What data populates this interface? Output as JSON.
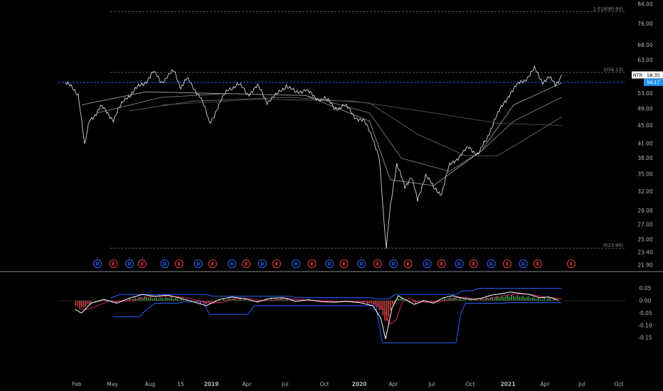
{
  "colors": {
    "background": "#000000",
    "price": "#d1d4dc",
    "axis_text": "#b2b5be",
    "fib_line": "#787b86",
    "dashed_blue": "#2962ff",
    "last_price_bg": "#2196f3",
    "dividend": "#2962ff",
    "earnings": "#f23645",
    "osc_white": "#ffffff",
    "osc_green": "#4caf50",
    "osc_red": "#ef5350",
    "osc_channel": "#2962ff",
    "osc_signal": "#e91e63"
  },
  "chart_data": [
    {
      "type": "line",
      "symbol": "NTR",
      "last_price_tag": "58.35",
      "level_tag": "56.17",
      "level_value": 56.17,
      "price_axis_ticks": [
        "84.00",
        "76.00",
        "68.00",
        "63.00",
        "58.00",
        "53.00",
        "49.00",
        "45.00",
        "41.00",
        "38.00",
        "35.00",
        "32.00",
        "29.00",
        "27.00",
        "25.00",
        "23.40",
        "21.90"
      ],
      "time_axis_labels": [
        "Feb",
        "May",
        "Aug",
        "15",
        "2019",
        "Apr",
        "Jul",
        "Oct",
        "2020",
        "Apr",
        "Jul",
        "Oct",
        "2021",
        "Apr",
        "Jul",
        "Oct"
      ],
      "fib_levels": [
        {
          "label": "1.618(80.90)",
          "value": 80.9
        },
        {
          "label": "1(59.13)",
          "value": 59.13
        },
        {
          "label": "0(23.90)",
          "value": 23.9
        }
      ],
      "key_prices": [
        {
          "x": 0.0,
          "y": 56.0
        },
        {
          "x": 0.8,
          "y": 53.0
        },
        {
          "x": 1.2,
          "y": 40.3
        },
        {
          "x": 1.5,
          "y": 46.0
        },
        {
          "x": 2.2,
          "y": 49.5
        },
        {
          "x": 3.0,
          "y": 46.5
        },
        {
          "x": 3.8,
          "y": 52.0
        },
        {
          "x": 4.5,
          "y": 54.5
        },
        {
          "x": 5.0,
          "y": 56.5
        },
        {
          "x": 5.5,
          "y": 59.0
        },
        {
          "x": 6.0,
          "y": 56.5
        },
        {
          "x": 6.8,
          "y": 59.4
        },
        {
          "x": 7.2,
          "y": 55.0
        },
        {
          "x": 7.6,
          "y": 57.0
        },
        {
          "x": 8.4,
          "y": 52.5
        },
        {
          "x": 9.0,
          "y": 45.5
        },
        {
          "x": 9.6,
          "y": 50.0
        },
        {
          "x": 10.2,
          "y": 54.5
        },
        {
          "x": 10.8,
          "y": 55.5
        },
        {
          "x": 11.4,
          "y": 53.0
        },
        {
          "x": 12.0,
          "y": 55.0
        },
        {
          "x": 12.6,
          "y": 51.0
        },
        {
          "x": 13.2,
          "y": 52.5
        },
        {
          "x": 13.8,
          "y": 55.5
        },
        {
          "x": 14.4,
          "y": 53.0
        },
        {
          "x": 15.0,
          "y": 54.5
        },
        {
          "x": 15.6,
          "y": 51.5
        },
        {
          "x": 16.2,
          "y": 52.0
        },
        {
          "x": 16.8,
          "y": 49.0
        },
        {
          "x": 17.4,
          "y": 50.0
        },
        {
          "x": 18.0,
          "y": 47.5
        },
        {
          "x": 18.6,
          "y": 46.0
        },
        {
          "x": 19.2,
          "y": 42.5
        },
        {
          "x": 19.6,
          "y": 38.0
        },
        {
          "x": 19.9,
          "y": 27.0
        },
        {
          "x": 20.05,
          "y": 23.9
        },
        {
          "x": 20.3,
          "y": 30.0
        },
        {
          "x": 20.7,
          "y": 36.5
        },
        {
          "x": 21.2,
          "y": 33.0
        },
        {
          "x": 21.6,
          "y": 34.5
        },
        {
          "x": 22.0,
          "y": 30.5
        },
        {
          "x": 22.5,
          "y": 35.0
        },
        {
          "x": 23.0,
          "y": 32.5
        },
        {
          "x": 23.5,
          "y": 31.8
        },
        {
          "x": 24.0,
          "y": 36.5
        },
        {
          "x": 24.6,
          "y": 38.5
        },
        {
          "x": 25.2,
          "y": 40.0
        },
        {
          "x": 25.8,
          "y": 39.0
        },
        {
          "x": 26.3,
          "y": 41.5
        },
        {
          "x": 26.8,
          "y": 46.5
        },
        {
          "x": 27.3,
          "y": 49.5
        },
        {
          "x": 27.8,
          "y": 53.5
        },
        {
          "x": 28.3,
          "y": 55.5
        },
        {
          "x": 28.8,
          "y": 57.5
        },
        {
          "x": 29.3,
          "y": 60.0
        },
        {
          "x": 29.8,
          "y": 56.5
        },
        {
          "x": 30.2,
          "y": 57.5
        },
        {
          "x": 30.6,
          "y": 55.5
        },
        {
          "x": 31.0,
          "y": 58.35
        }
      ],
      "moving_averages": [
        {
          "name": "",
          "points": [
            {
              "x": 1.0,
              "y": 50.0
            },
            {
              "x": 5.0,
              "y": 53.5
            },
            {
              "x": 10.0,
              "y": 53.0
            },
            {
              "x": 15.0,
              "y": 52.5
            },
            {
              "x": 19.0,
              "y": 46.0
            },
            {
              "x": 20.3,
              "y": 34.0
            },
            {
              "x": 23.0,
              "y": 33.0
            },
            {
              "x": 26.0,
              "y": 39.5
            },
            {
              "x": 28.0,
              "y": 50.0
            },
            {
              "x": 31.0,
              "y": 56.0
            }
          ]
        },
        {
          "name": "",
          "points": [
            {
              "x": 2.0,
              "y": 48.0
            },
            {
              "x": 6.0,
              "y": 52.0
            },
            {
              "x": 10.0,
              "y": 53.0
            },
            {
              "x": 15.0,
              "y": 52.5
            },
            {
              "x": 19.0,
              "y": 48.0
            },
            {
              "x": 21.0,
              "y": 38.0
            },
            {
              "x": 24.0,
              "y": 35.5
            },
            {
              "x": 26.0,
              "y": 39.5
            },
            {
              "x": 28.0,
              "y": 46.0
            },
            {
              "x": 31.0,
              "y": 52.0
            }
          ]
        },
        {
          "name": "",
          "points": [
            {
              "x": 4.0,
              "y": 48.5
            },
            {
              "x": 8.0,
              "y": 51.0
            },
            {
              "x": 14.0,
              "y": 52.0
            },
            {
              "x": 19.0,
              "y": 50.5
            },
            {
              "x": 22.0,
              "y": 43.0
            },
            {
              "x": 25.0,
              "y": 38.5
            },
            {
              "x": 27.0,
              "y": 38.5
            },
            {
              "x": 29.0,
              "y": 42.5
            },
            {
              "x": 31.0,
              "y": 47.0
            }
          ]
        },
        {
          "name": "",
          "points": [
            {
              "x": 6.0,
              "y": 50.0
            },
            {
              "x": 12.0,
              "y": 51.5
            },
            {
              "x": 18.0,
              "y": 51.0
            },
            {
              "x": 23.0,
              "y": 48.0
            },
            {
              "x": 27.0,
              "y": 45.5
            },
            {
              "x": 31.0,
              "y": 45.0
            }
          ]
        }
      ],
      "events": [
        {
          "type": "D",
          "x": 2.0
        },
        {
          "type": "E",
          "x": 3.0
        },
        {
          "type": "D",
          "x": 4.0
        },
        {
          "type": "E",
          "x": 4.8
        },
        {
          "type": "D",
          "x": 6.2
        },
        {
          "type": "E",
          "x": 7.1
        },
        {
          "type": "D",
          "x": 8.3
        },
        {
          "type": "E",
          "x": 9.2
        },
        {
          "type": "D",
          "x": 10.4
        },
        {
          "type": "E",
          "x": 11.3
        },
        {
          "type": "D",
          "x": 12.3
        },
        {
          "type": "E",
          "x": 13.2
        },
        {
          "type": "D",
          "x": 14.4
        },
        {
          "type": "E",
          "x": 15.4
        },
        {
          "type": "D",
          "x": 16.5
        },
        {
          "type": "E",
          "x": 17.4
        },
        {
          "type": "D",
          "x": 18.5
        },
        {
          "type": "E",
          "x": 19.5
        },
        {
          "type": "D",
          "x": 20.5
        },
        {
          "type": "E",
          "x": 21.4
        },
        {
          "type": "D",
          "x": 22.6
        },
        {
          "type": "E",
          "x": 23.5
        },
        {
          "type": "D",
          "x": 24.6
        },
        {
          "type": "E",
          "x": 25.5
        },
        {
          "type": "D",
          "x": 26.6
        },
        {
          "type": "E",
          "x": 27.6
        },
        {
          "type": "D",
          "x": 28.6
        },
        {
          "type": "E",
          "x": 29.5
        },
        {
          "type": "E",
          "x": 31.6
        }
      ]
    },
    {
      "type": "line",
      "axis_ticks": [
        "0.05",
        "0.00",
        "-0.05",
        "-0.10",
        "-0.15"
      ],
      "ylim": [
        -0.18,
        0.075
      ],
      "oscillator": [
        {
          "x": 0.6,
          "y": -0.035
        },
        {
          "x": 1.0,
          "y": -0.05
        },
        {
          "x": 1.6,
          "y": -0.01
        },
        {
          "x": 2.4,
          "y": 0.005
        },
        {
          "x": 3.2,
          "y": -0.01
        },
        {
          "x": 4.0,
          "y": 0.01
        },
        {
          "x": 4.8,
          "y": 0.025
        },
        {
          "x": 5.6,
          "y": 0.018
        },
        {
          "x": 6.4,
          "y": 0.022
        },
        {
          "x": 7.2,
          "y": 0.01
        },
        {
          "x": 8.0,
          "y": -0.005
        },
        {
          "x": 8.8,
          "y": -0.02
        },
        {
          "x": 9.6,
          "y": 0.005
        },
        {
          "x": 10.4,
          "y": 0.015
        },
        {
          "x": 11.2,
          "y": 0.008
        },
        {
          "x": 12.0,
          "y": -0.005
        },
        {
          "x": 12.8,
          "y": 0.01
        },
        {
          "x": 13.6,
          "y": 0.012
        },
        {
          "x": 14.4,
          "y": -0.002
        },
        {
          "x": 15.2,
          "y": 0.004
        },
        {
          "x": 16.0,
          "y": -0.004
        },
        {
          "x": 16.8,
          "y": -0.006
        },
        {
          "x": 17.6,
          "y": -0.003
        },
        {
          "x": 18.4,
          "y": -0.008
        },
        {
          "x": 19.2,
          "y": -0.02
        },
        {
          "x": 19.7,
          "y": -0.07
        },
        {
          "x": 20.0,
          "y": -0.155
        },
        {
          "x": 20.4,
          "y": -0.03
        },
        {
          "x": 20.8,
          "y": 0.02
        },
        {
          "x": 21.2,
          "y": 0.005
        },
        {
          "x": 21.8,
          "y": -0.015
        },
        {
          "x": 22.4,
          "y": 0.0
        },
        {
          "x": 23.0,
          "y": -0.01
        },
        {
          "x": 23.6,
          "y": 0.012
        },
        {
          "x": 24.2,
          "y": 0.02
        },
        {
          "x": 24.8,
          "y": 0.01
        },
        {
          "x": 25.4,
          "y": 0.005
        },
        {
          "x": 26.0,
          "y": 0.01
        },
        {
          "x": 26.6,
          "y": 0.022
        },
        {
          "x": 27.2,
          "y": 0.028
        },
        {
          "x": 27.8,
          "y": 0.035
        },
        {
          "x": 28.4,
          "y": 0.03
        },
        {
          "x": 29.0,
          "y": 0.025
        },
        {
          "x": 29.6,
          "y": 0.012
        },
        {
          "x": 30.2,
          "y": 0.015
        },
        {
          "x": 30.8,
          "y": 0.002
        }
      ],
      "upper_band": [
        {
          "x": 2.8,
          "y": 0.01
        },
        {
          "x": 3.4,
          "y": 0.025
        },
        {
          "x": 8.8,
          "y": 0.025
        },
        {
          "x": 9.2,
          "y": 0.018
        },
        {
          "x": 14.0,
          "y": 0.018
        },
        {
          "x": 14.4,
          "y": 0.012
        },
        {
          "x": 19.0,
          "y": 0.012
        },
        {
          "x": 19.4,
          "y": 0.008
        },
        {
          "x": 20.2,
          "y": 0.008
        },
        {
          "x": 20.6,
          "y": 0.025
        },
        {
          "x": 24.4,
          "y": 0.025
        },
        {
          "x": 24.8,
          "y": 0.04
        },
        {
          "x": 25.4,
          "y": 0.04
        },
        {
          "x": 25.8,
          "y": 0.05
        },
        {
          "x": 31.0,
          "y": 0.05
        }
      ],
      "lower_band": [
        {
          "x": 3.0,
          "y": -0.065
        },
        {
          "x": 4.6,
          "y": -0.065
        },
        {
          "x": 5.0,
          "y": -0.04
        },
        {
          "x": 5.6,
          "y": -0.01
        },
        {
          "x": 7.0,
          "y": -0.01
        },
        {
          "x": 7.4,
          "y": -0.005
        },
        {
          "x": 8.6,
          "y": -0.005
        },
        {
          "x": 9.0,
          "y": -0.055
        },
        {
          "x": 11.4,
          "y": -0.055
        },
        {
          "x": 11.8,
          "y": -0.02
        },
        {
          "x": 19.4,
          "y": -0.02
        },
        {
          "x": 19.8,
          "y": -0.17
        },
        {
          "x": 24.4,
          "y": -0.17
        },
        {
          "x": 24.7,
          "y": -0.05
        },
        {
          "x": 25.0,
          "y": -0.01
        },
        {
          "x": 27.4,
          "y": -0.01
        },
        {
          "x": 27.6,
          "y": -0.008
        },
        {
          "x": 31.0,
          "y": -0.008
        }
      ]
    }
  ]
}
